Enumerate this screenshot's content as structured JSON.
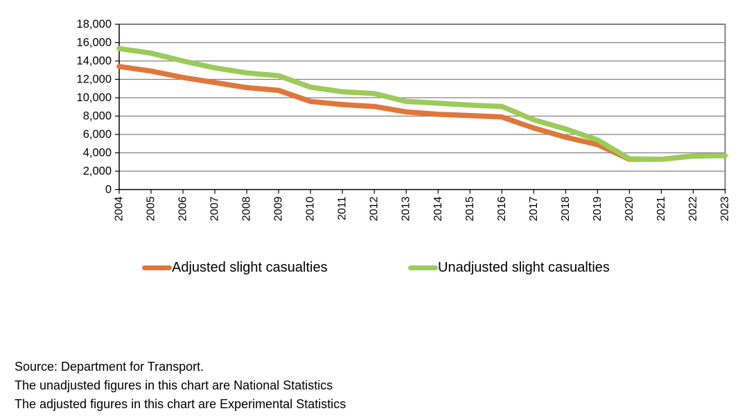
{
  "chart_data": {
    "type": "line",
    "title": "",
    "x": [
      "2004",
      "2005",
      "2006",
      "2007",
      "2008",
      "2009",
      "2010",
      "2011",
      "2012",
      "2013",
      "2014",
      "2015",
      "2016",
      "2017",
      "2018",
      "2019",
      "2020",
      "2021",
      "2022",
      "2023"
    ],
    "series": [
      {
        "name": "Adjusted slight casualties",
        "color": "#E0763A",
        "values": [
          13400,
          12900,
          12200,
          11650,
          11100,
          10800,
          9600,
          9250,
          9050,
          8450,
          8200,
          8050,
          7900,
          6700,
          5700,
          4900,
          3300,
          3300,
          3650,
          3700
        ]
      },
      {
        "name": "Unadjusted slight casualties",
        "color": "#9CCB5A",
        "values": [
          15350,
          14850,
          14000,
          13250,
          12700,
          12400,
          11150,
          10650,
          10450,
          9600,
          9400,
          9200,
          9050,
          7600,
          6600,
          5400,
          3350,
          3300,
          3650,
          3700
        ]
      }
    ],
    "ylim": [
      0,
      18000
    ],
    "ytick_step": 2000,
    "ytick_labels": [
      "0",
      "2,000",
      "4,000",
      "6,000",
      "8,000",
      "10,000",
      "12,000",
      "14,000",
      "16,000",
      "18,000"
    ],
    "grid": "horizontal-only",
    "legend_position": "below-chart",
    "axis_color": "#000000",
    "gridline_color": "#808080",
    "border_color": "#808080"
  },
  "footer": {
    "lines": [
      "Source: Department for Transport.",
      "The unadjusted figures in this chart are National Statistics",
      "The adjusted figures in this chart are Experimental Statistics"
    ]
  }
}
